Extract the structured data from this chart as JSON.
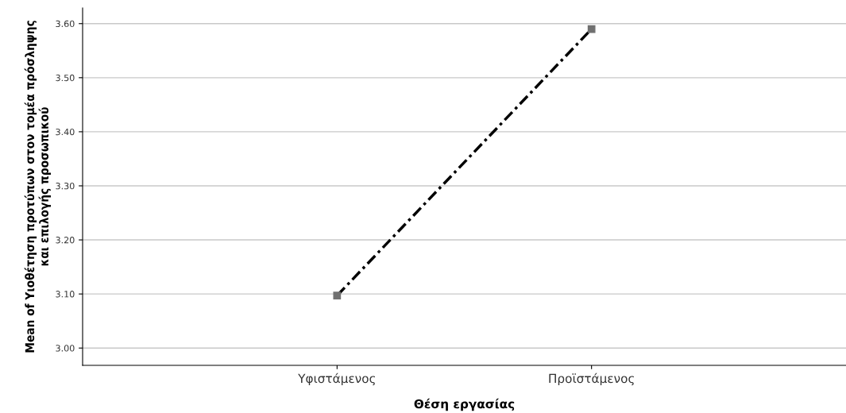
{
  "chart_data": {
    "type": "line",
    "xlabel": "Θέση εργασίας",
    "ylabel": "Mean of Υιοθέτηση προτύπων στον τομέα πρόσληψης\nκαι επιλογής προσωπικού",
    "categories": [
      "Υφιστάμενος",
      "Προϊστάμενος"
    ],
    "series": [
      {
        "color": "#000000",
        "values": [
          3.097,
          3.59
        ]
      }
    ],
    "ylim": [
      2.968,
      3.629
    ],
    "yticks": [
      {
        "value": 3.0,
        "label": "3.00"
      },
      {
        "value": 3.1,
        "label": "3.10"
      },
      {
        "value": 3.2,
        "label": "3.20"
      },
      {
        "value": 3.3,
        "label": "3.30"
      },
      {
        "value": 3.4,
        "label": "3.40"
      },
      {
        "value": 3.5,
        "label": "3.50"
      },
      {
        "value": 3.6,
        "label": "3.60"
      }
    ],
    "grid": "y",
    "marker": "square",
    "line_style": "dashed"
  }
}
